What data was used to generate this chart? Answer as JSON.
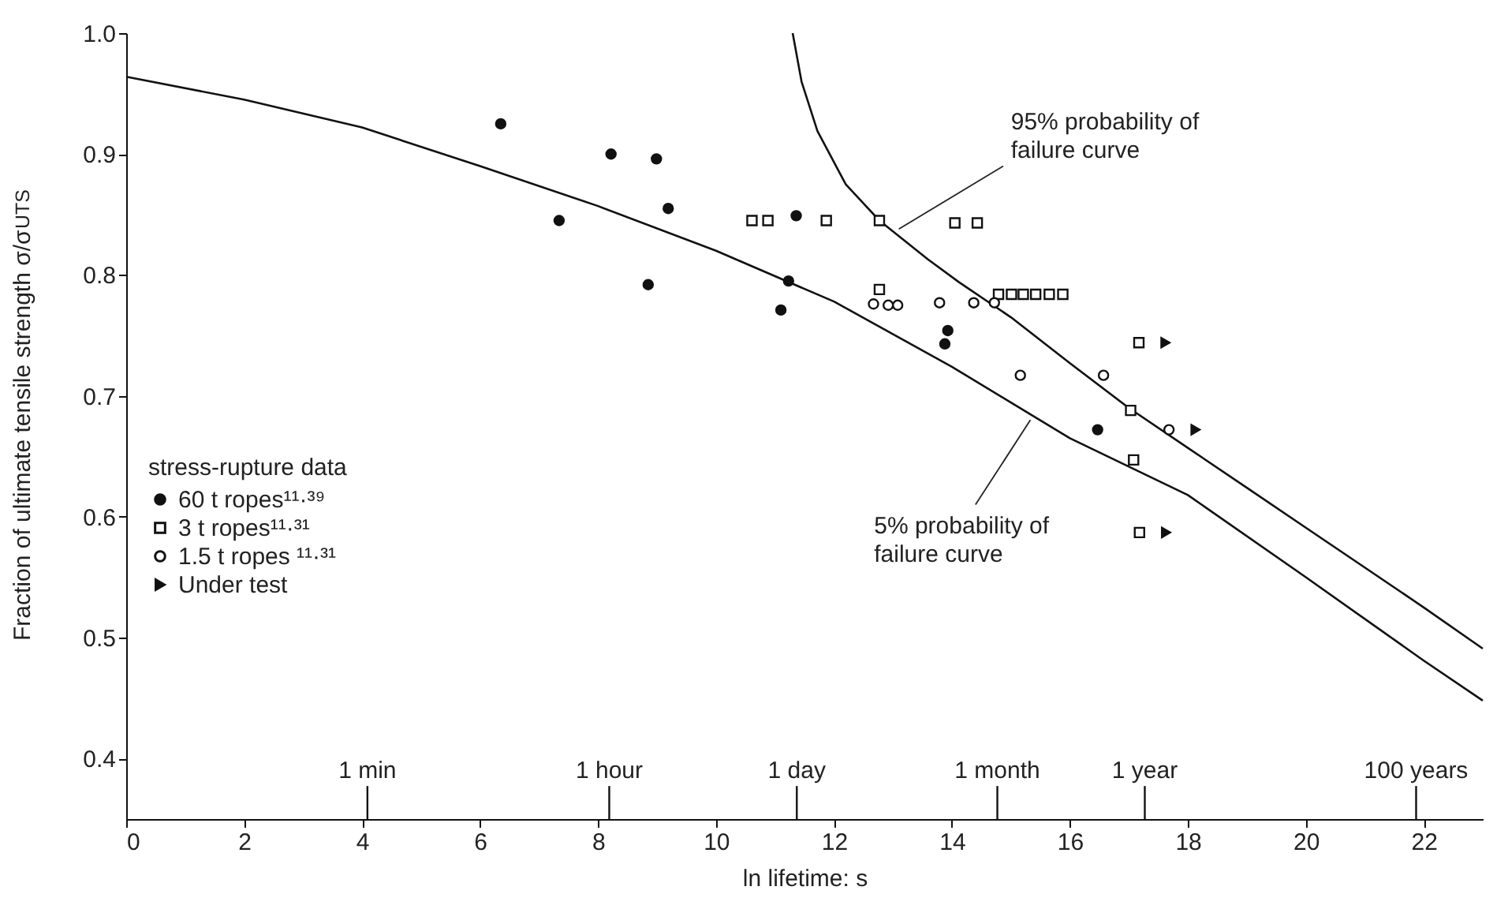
{
  "chart_data": {
    "type": "scatter",
    "xlabel": "ln lifetime: s",
    "ylabel": "Fraction of ultimate tensile strength σ/σ$_{UTS}$",
    "legend_title": "stress-rupture data",
    "legend": "left",
    "grid": false,
    "xlim": [
      0,
      23
    ],
    "xticks": [
      0,
      2,
      4,
      6,
      8,
      10,
      12,
      14,
      16,
      18,
      20,
      22
    ],
    "ylim": [
      0.35,
      1.0
    ],
    "yticks": [
      {
        "value": 0.4,
        "label": "0.4"
      },
      {
        "value": 0.5,
        "label": "0.5"
      },
      {
        "value": 0.6,
        "label": "0.6"
      },
      {
        "value": 0.7,
        "label": "0.7"
      },
      {
        "value": 0.8,
        "label": "0.8"
      },
      {
        "value": 0.9,
        "label": "0.9"
      },
      {
        "value": 1.0,
        "label": "1.0"
      }
    ],
    "ref_lines": [
      {
        "axis": "x",
        "value": 4.09,
        "label": "1 min"
      },
      {
        "axis": "x",
        "value": 8.19,
        "label": "1 hour"
      },
      {
        "axis": "x",
        "value": 11.37,
        "label": "1 day"
      },
      {
        "axis": "x",
        "value": 14.77,
        "label": "1 month"
      },
      {
        "axis": "x",
        "value": 17.27,
        "label": "1 year"
      },
      {
        "axis": "x",
        "value": 21.87,
        "label": "100 years"
      }
    ],
    "series": [
      {
        "name": "60 t ropes¹¹·³⁹",
        "marker": "circle",
        "color": "#111111",
        "x": [
          6.35,
          7.34,
          8.22,
          8.99,
          9.19,
          8.85,
          11.36,
          11.23,
          11.1,
          13.93,
          13.88,
          16.47
        ],
        "values": [
          0.925,
          0.845,
          0.9,
          0.896,
          0.855,
          0.792,
          0.849,
          0.795,
          0.771,
          0.754,
          0.743,
          0.672
        ]
      },
      {
        "name": "3 t ropes¹¹·³¹",
        "marker": "square",
        "color": "#111111",
        "x": [
          10.61,
          10.88,
          11.87,
          12.77,
          12.77,
          14.05,
          14.43,
          14.79,
          15.01,
          15.21,
          15.42,
          15.65,
          15.88,
          17.17,
          17.03,
          17.08,
          17.18
        ],
        "values": [
          0.845,
          0.845,
          0.845,
          0.845,
          0.788,
          0.843,
          0.843,
          0.784,
          0.784,
          0.784,
          0.784,
          0.784,
          0.784,
          0.744,
          0.688,
          0.647,
          0.587
        ]
      },
      {
        "name": "1.5 t ropes ¹¹·³¹",
        "marker": "circle",
        "color": "#111111",
        "x": [
          12.67,
          12.92,
          13.08,
          13.79,
          14.37,
          14.72,
          15.16,
          16.57,
          17.68
        ],
        "values": [
          0.776,
          0.775,
          0.775,
          0.777,
          0.777,
          0.777,
          0.717,
          0.717,
          0.672
        ]
      },
      {
        "name": "Under test",
        "marker": "triangle",
        "color": "#111111",
        "x": [
          17.62,
          17.63,
          18.13
        ],
        "values": [
          0.744,
          0.587,
          0.672
        ]
      },
      {
        "type": "line",
        "color": "#111111",
        "line_style": "solid",
        "x": [
          0,
          2,
          4,
          6,
          8,
          10,
          12,
          14,
          16,
          18,
          20,
          22,
          23
        ],
        "values": [
          0.964,
          0.945,
          0.922,
          0.89,
          0.857,
          0.82,
          0.778,
          0.724,
          0.665,
          0.618,
          0.55,
          0.481,
          0.448
        ]
      },
      {
        "type": "line",
        "color": "#111111",
        "line_style": "solid",
        "x": [
          11.3,
          11.45,
          11.72,
          12.2,
          12.77,
          13.59,
          14.12,
          15,
          16,
          17,
          18,
          19,
          20,
          21,
          22,
          23
        ],
        "values": [
          1.0,
          0.96,
          0.919,
          0.875,
          0.845,
          0.813,
          0.794,
          0.765,
          0.727,
          0.69,
          0.657,
          0.624,
          0.591,
          0.558,
          0.525,
          0.491
        ]
      }
    ],
    "annotations": [
      {
        "text": "95% probability of\nfailure curve",
        "x": 13.1,
        "y": 0.838
      },
      {
        "text": "5% probability of\nfailure curve",
        "x": 15.33,
        "y": 0.68
      }
    ]
  }
}
